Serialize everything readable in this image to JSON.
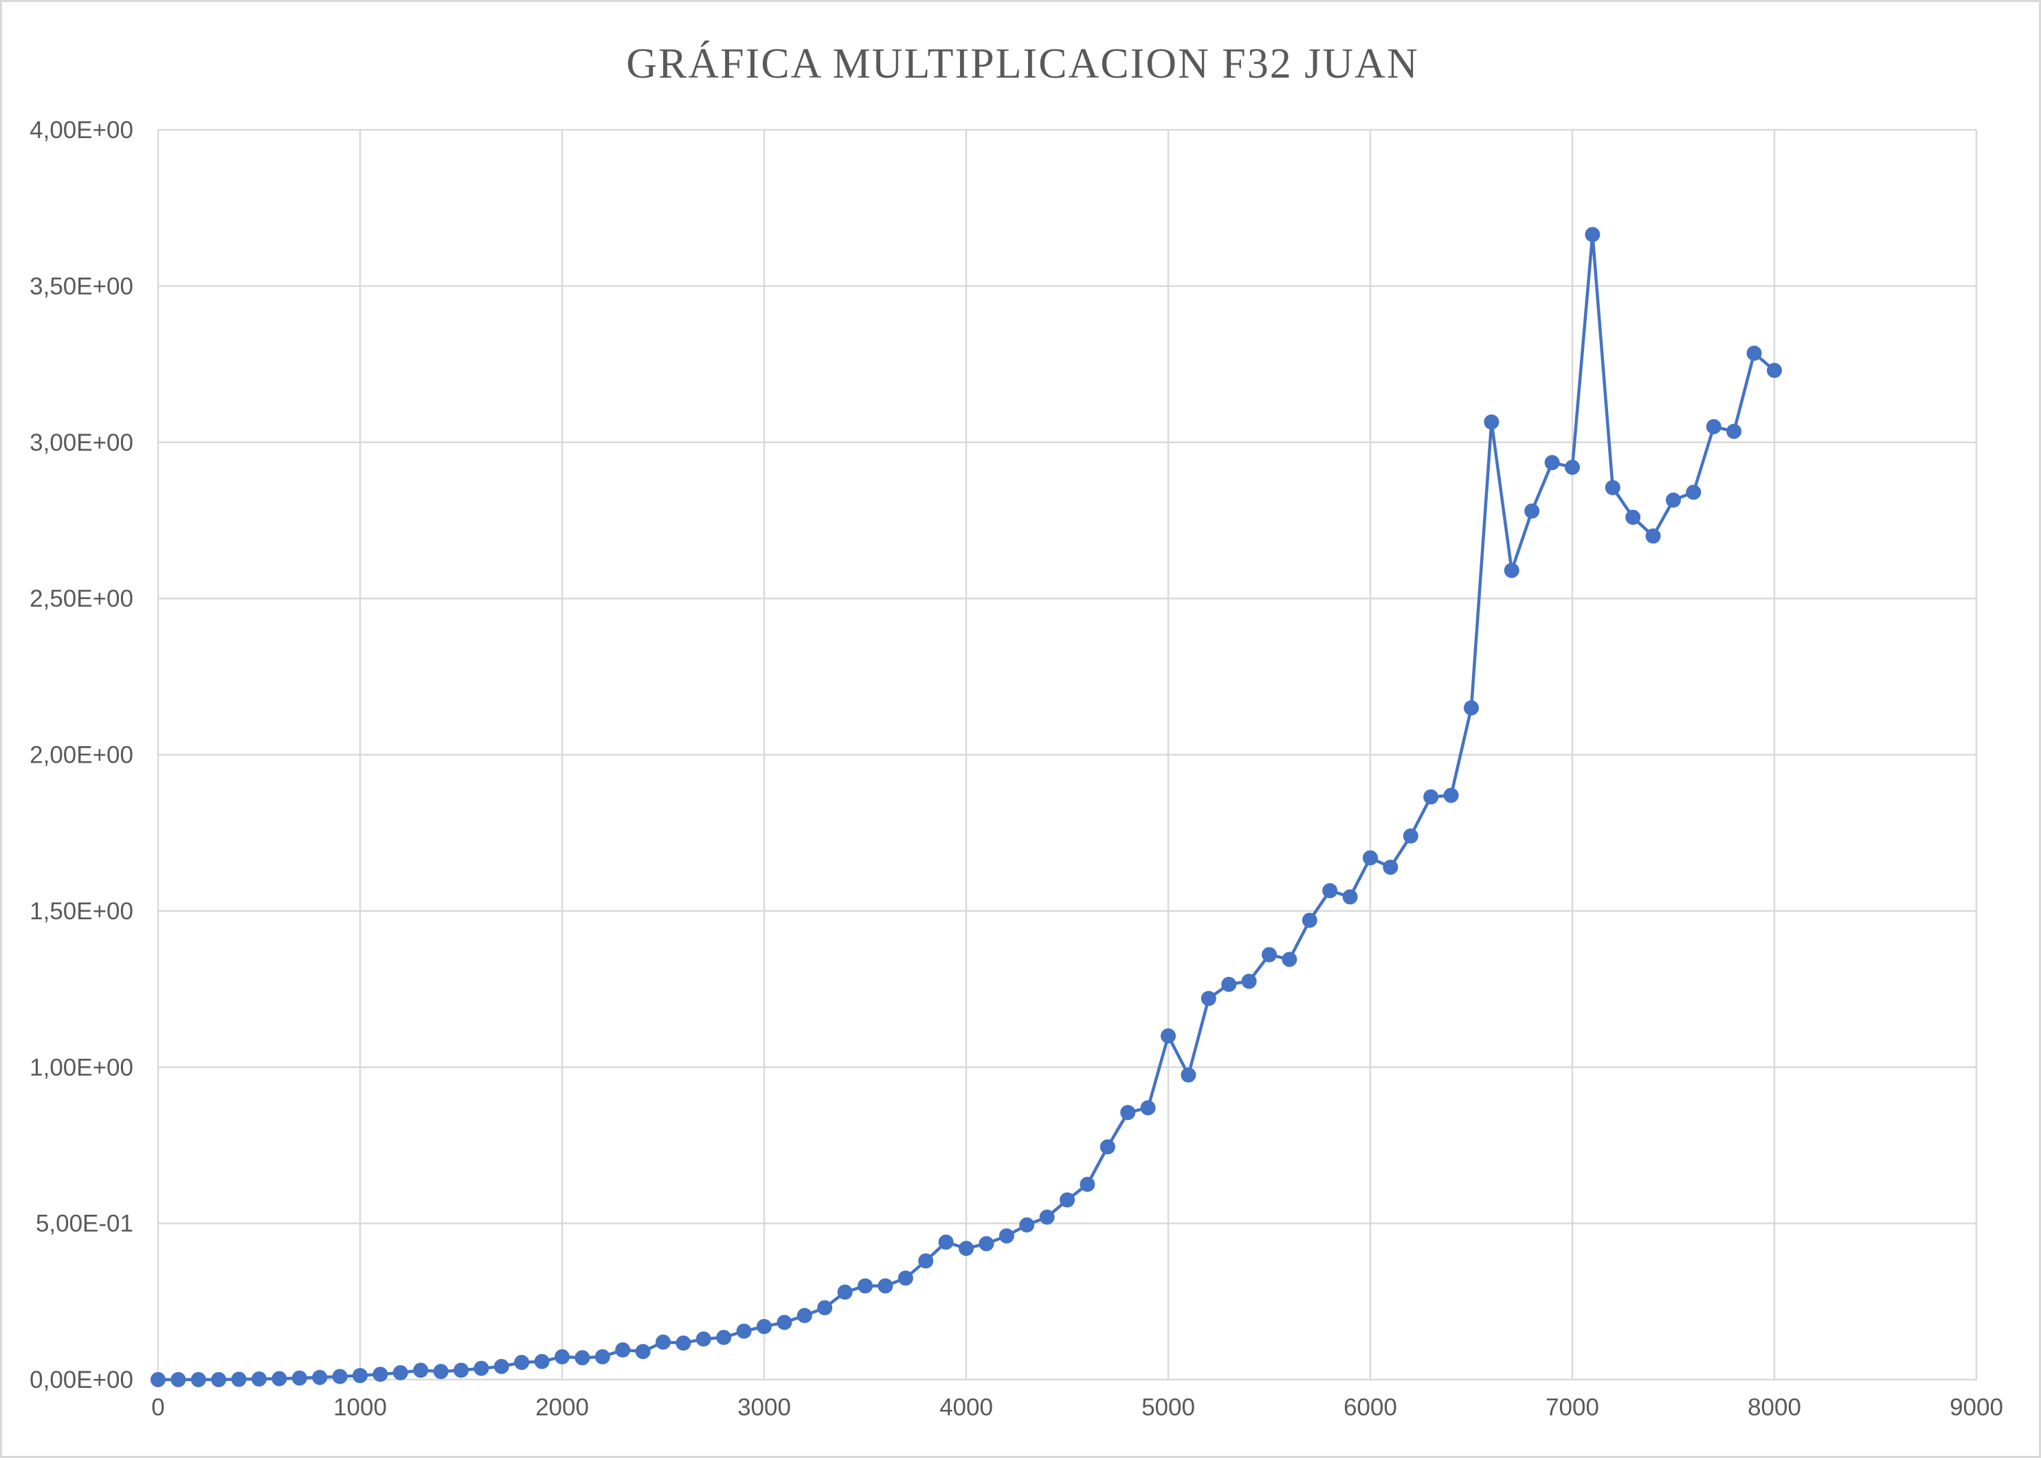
{
  "chart_data": {
    "type": "line",
    "title": "GRÁFICA MULTIPLICACION F32 JUAN",
    "xlabel": "",
    "ylabel": "",
    "xlim": [
      0,
      9000
    ],
    "ylim": [
      0,
      4
    ],
    "x_ticks": [
      0,
      1000,
      2000,
      3000,
      4000,
      5000,
      6000,
      7000,
      8000,
      9000
    ],
    "x_tick_labels": [
      "0",
      "1000",
      "2000",
      "3000",
      "4000",
      "5000",
      "6000",
      "7000",
      "8000",
      "9000"
    ],
    "y_ticks": [
      0,
      0.5,
      1,
      1.5,
      2,
      2.5,
      3,
      3.5,
      4
    ],
    "y_tick_labels": [
      "0,00E+00",
      "5,00E-01",
      "1,00E+00",
      "1,50E+00",
      "2,00E+00",
      "2,50E+00",
      "3,00E+00",
      "3,50E+00",
      "4,00E+00"
    ],
    "grid": true,
    "legend": "none",
    "series_color": "#4472c4",
    "series": [
      {
        "x": [
          0,
          100,
          200,
          300,
          400,
          500,
          600,
          700,
          800,
          900,
          1000,
          1100,
          1200,
          1300,
          1400,
          1500,
          1600,
          1700,
          1800,
          1900,
          2000,
          2100,
          2200,
          2300,
          2400,
          2500,
          2600,
          2700,
          2800,
          2900,
          3000,
          3100,
          3200,
          3300,
          3400,
          3500,
          3600,
          3700,
          3800,
          3900,
          4000,
          4100,
          4200,
          4300,
          4400,
          4500,
          4600,
          4700,
          4800,
          4900,
          5000,
          5100,
          5200,
          5300,
          5400,
          5500,
          5600,
          5700,
          5800,
          5900,
          6000,
          6100,
          6200,
          6300,
          6400,
          6500,
          6600,
          6700,
          6800,
          6900,
          7000,
          7100,
          7200,
          7300,
          7400,
          7500,
          7600,
          7700,
          7800,
          7900,
          8000
        ],
        "values": [
          0.0,
          0.0,
          0.0,
          0.0,
          0.001,
          0.002,
          0.003,
          0.005,
          0.007,
          0.01,
          0.013,
          0.017,
          0.022,
          0.03,
          0.026,
          0.03,
          0.036,
          0.042,
          0.055,
          0.058,
          0.073,
          0.07,
          0.073,
          0.095,
          0.09,
          0.12,
          0.117,
          0.13,
          0.135,
          0.155,
          0.17,
          0.183,
          0.205,
          0.23,
          0.28,
          0.3,
          0.3,
          0.325,
          0.38,
          0.44,
          0.42,
          0.435,
          0.46,
          0.495,
          0.52,
          0.575,
          0.625,
          0.745,
          0.855,
          0.87,
          1.1,
          0.975,
          1.22,
          1.265,
          1.275,
          1.36,
          1.345,
          1.47,
          1.565,
          1.545,
          1.67,
          1.64,
          1.74,
          1.865,
          1.87,
          2.15,
          3.065,
          2.59,
          2.78,
          2.935,
          2.92,
          3.665,
          2.855,
          2.76,
          2.7,
          2.815,
          2.84,
          3.05,
          3.035,
          3.285,
          3.23
        ]
      }
    ]
  }
}
